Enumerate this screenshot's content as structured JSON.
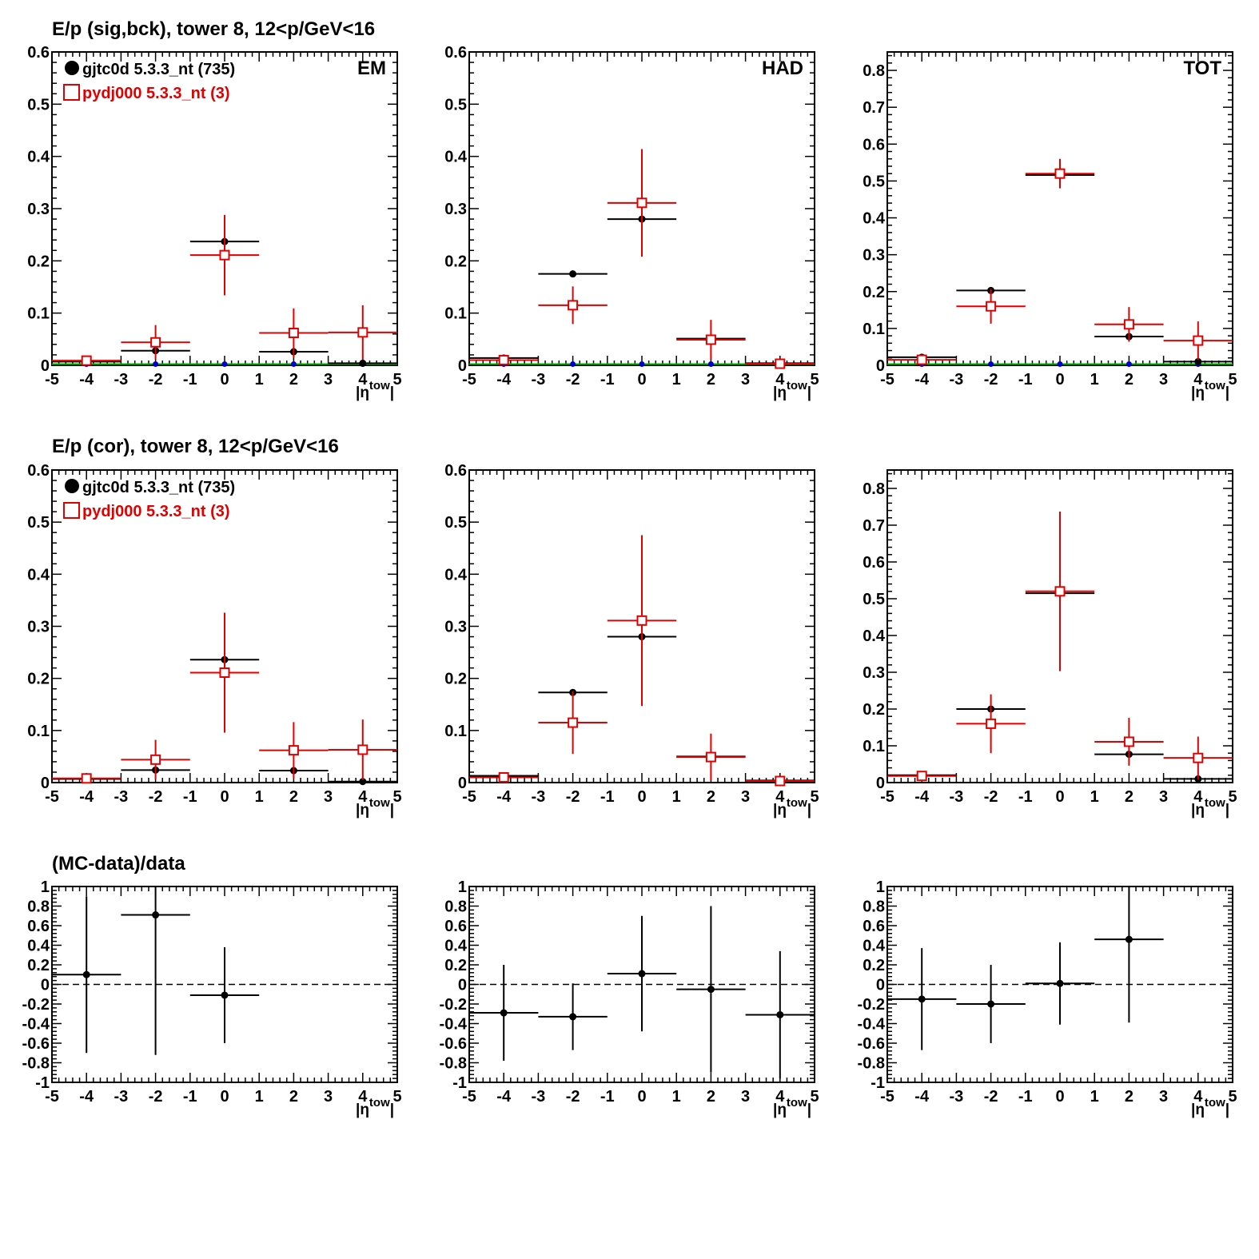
{
  "titles": {
    "row1": "E/p (sig,bck), tower 8, 12<p/GeV<16",
    "row2": "E/p (cor), tower 8, 12<p/GeV<16",
    "row3": "(MC-data)/data"
  },
  "legend": {
    "data": "gjtc0d 5.3.3_nt (735)",
    "mc": "pydj000 5.3.3_nt (3)"
  },
  "panel_labels": [
    "EM",
    "HAD",
    "TOT"
  ],
  "x_axis_label": "|η^tow|",
  "colors": {
    "data": "#000000",
    "mc": "#e00000",
    "blue": "#0000cc",
    "green": "#00b000"
  },
  "chart_data": [
    {
      "id": "r1c1",
      "type": "scatter",
      "xlim": [
        -5,
        5
      ],
      "ylim": [
        0,
        0.6
      ],
      "yticks": [
        0,
        0.1,
        0.2,
        0.3,
        0.4,
        0.5,
        0.6
      ],
      "ytick_labels": [
        "0",
        "0.1",
        "0.2",
        "0.3",
        "0.4",
        "0.5",
        "0.6"
      ],
      "label": "EM",
      "legend": true,
      "floor_markers": true,
      "series": [
        {
          "name": "gjtc0d 5.3.3_nt (735)",
          "color": "#000000",
          "marker": "dot",
          "points": [
            {
              "x": -4,
              "y": 0.007,
              "err": 0.004
            },
            {
              "x": -2,
              "y": 0.028,
              "err": 0.005
            },
            {
              "x": 0,
              "y": 0.237,
              "err": 0.007
            },
            {
              "x": 2,
              "y": 0.026,
              "err": 0.005
            },
            {
              "x": 4,
              "y": 0.004,
              "err": 0.003
            }
          ]
        },
        {
          "name": "pydj000 5.3.3_nt (3)",
          "color": "#e00000",
          "marker": "square",
          "points": [
            {
              "x": -4,
              "y": 0.009,
              "err": 0.006
            },
            {
              "x": -2,
              "y": 0.044,
              "err": 0.033
            },
            {
              "x": 0,
              "y": 0.211,
              "err": 0.077
            },
            {
              "x": 2,
              "y": 0.062,
              "err": 0.047
            },
            {
              "x": 4,
              "y": 0.063,
              "err": 0.052
            }
          ]
        }
      ]
    },
    {
      "id": "r1c2",
      "type": "scatter",
      "xlim": [
        -5,
        5
      ],
      "ylim": [
        0,
        0.6
      ],
      "yticks": [
        0,
        0.1,
        0.2,
        0.3,
        0.4,
        0.5,
        0.6
      ],
      "ytick_labels": [
        "0",
        "0.1",
        "0.2",
        "0.3",
        "0.4",
        "0.5",
        "0.6"
      ],
      "label": "HAD",
      "legend": false,
      "floor_markers": true,
      "series": [
        {
          "name": "gjtc0d 5.3.3_nt (735)",
          "color": "#000000",
          "marker": "dot",
          "points": [
            {
              "x": -4,
              "y": 0.014,
              "err": 0.003
            },
            {
              "x": -2,
              "y": 0.175,
              "err": 0.005
            },
            {
              "x": 0,
              "y": 0.28,
              "err": 0.007
            },
            {
              "x": 2,
              "y": 0.051,
              "err": 0.005
            },
            {
              "x": 4,
              "y": 0.004,
              "err": 0.002
            }
          ]
        },
        {
          "name": "pydj000 5.3.3_nt (3)",
          "color": "#e00000",
          "marker": "square",
          "points": [
            {
              "x": -4,
              "y": 0.01,
              "err": 0.005
            },
            {
              "x": -2,
              "y": 0.115,
              "err": 0.036
            },
            {
              "x": 0,
              "y": 0.311,
              "err": 0.103
            },
            {
              "x": 2,
              "y": 0.049,
              "err": 0.038
            },
            {
              "x": 4,
              "y": 0.003,
              "err": 0.004
            }
          ]
        }
      ]
    },
    {
      "id": "r1c3",
      "type": "scatter",
      "xlim": [
        -5,
        5
      ],
      "ylim": [
        0,
        0.85
      ],
      "yticks": [
        0,
        0.1,
        0.2,
        0.3,
        0.4,
        0.5,
        0.6,
        0.7,
        0.8
      ],
      "ytick_labels": [
        "0",
        "0.1",
        "0.2",
        "0.3",
        "0.4",
        "0.5",
        "0.6",
        "0.7",
        "0.8"
      ],
      "label": "TOT",
      "legend": false,
      "floor_markers": true,
      "series": [
        {
          "name": "gjtc0d 5.3.3_nt (735)",
          "color": "#000000",
          "marker": "dot",
          "points": [
            {
              "x": -4,
              "y": 0.022,
              "err": 0.004
            },
            {
              "x": -2,
              "y": 0.203,
              "err": 0.006
            },
            {
              "x": 0,
              "y": 0.516,
              "err": 0.008
            },
            {
              "x": 2,
              "y": 0.078,
              "err": 0.005
            },
            {
              "x": 4,
              "y": 0.01,
              "err": 0.003
            }
          ]
        },
        {
          "name": "pydj000 5.3.3_nt (3)",
          "color": "#e00000",
          "marker": "square",
          "points": [
            {
              "x": -4,
              "y": 0.015,
              "err": 0.008
            },
            {
              "x": -2,
              "y": 0.16,
              "err": 0.047
            },
            {
              "x": 0,
              "y": 0.52,
              "err": 0.04
            },
            {
              "x": 2,
              "y": 0.111,
              "err": 0.047
            },
            {
              "x": 4,
              "y": 0.067,
              "err": 0.052
            }
          ]
        }
      ]
    },
    {
      "id": "r2c1",
      "type": "scatter",
      "xlim": [
        -5,
        5
      ],
      "ylim": [
        0,
        0.6
      ],
      "yticks": [
        0,
        0.1,
        0.2,
        0.3,
        0.4,
        0.5,
        0.6
      ],
      "ytick_labels": [
        "0",
        "0.1",
        "0.2",
        "0.3",
        "0.4",
        "0.5",
        "0.6"
      ],
      "label": "",
      "legend": true,
      "floor_markers": false,
      "series": [
        {
          "name": "gjtc0d 5.3.3_nt (735)",
          "color": "#000000",
          "marker": "dot",
          "points": [
            {
              "x": -4,
              "y": 0.007,
              "err": 0.004
            },
            {
              "x": -2,
              "y": 0.024,
              "err": 0.005
            },
            {
              "x": 0,
              "y": 0.236,
              "err": 0.007
            },
            {
              "x": 2,
              "y": 0.023,
              "err": 0.005
            },
            {
              "x": 4,
              "y": 0.002,
              "err": 0.003
            }
          ]
        },
        {
          "name": "pydj000 5.3.3_nt (3)",
          "color": "#e00000",
          "marker": "square",
          "points": [
            {
              "x": -4,
              "y": 0.008,
              "err": 0.006
            },
            {
              "x": -2,
              "y": 0.044,
              "err": 0.038
            },
            {
              "x": 0,
              "y": 0.211,
              "err": 0.115
            },
            {
              "x": 2,
              "y": 0.062,
              "err": 0.054
            },
            {
              "x": 4,
              "y": 0.063,
              "err": 0.058
            }
          ]
        }
      ]
    },
    {
      "id": "r2c2",
      "type": "scatter",
      "xlim": [
        -5,
        5
      ],
      "ylim": [
        0,
        0.6
      ],
      "yticks": [
        0,
        0.1,
        0.2,
        0.3,
        0.4,
        0.5,
        0.6
      ],
      "ytick_labels": [
        "0",
        "0.1",
        "0.2",
        "0.3",
        "0.4",
        "0.5",
        "0.6"
      ],
      "label": "",
      "legend": false,
      "floor_markers": false,
      "series": [
        {
          "name": "gjtc0d 5.3.3_nt (735)",
          "color": "#000000",
          "marker": "dot",
          "points": [
            {
              "x": -4,
              "y": 0.013,
              "err": 0.003
            },
            {
              "x": -2,
              "y": 0.173,
              "err": 0.005
            },
            {
              "x": 0,
              "y": 0.28,
              "err": 0.007
            },
            {
              "x": 2,
              "y": 0.05,
              "err": 0.005
            },
            {
              "x": 4,
              "y": 0.004,
              "err": 0.002
            }
          ]
        },
        {
          "name": "pydj000 5.3.3_nt (3)",
          "color": "#e00000",
          "marker": "square",
          "points": [
            {
              "x": -4,
              "y": 0.01,
              "err": 0.006
            },
            {
              "x": -2,
              "y": 0.115,
              "err": 0.06
            },
            {
              "x": 0,
              "y": 0.311,
              "err": 0.164
            },
            {
              "x": 2,
              "y": 0.049,
              "err": 0.045
            },
            {
              "x": 4,
              "y": 0.003,
              "err": 0.005
            }
          ]
        }
      ]
    },
    {
      "id": "r2c3",
      "type": "scatter",
      "xlim": [
        -5,
        5
      ],
      "ylim": [
        0,
        0.85
      ],
      "yticks": [
        0,
        0.1,
        0.2,
        0.3,
        0.4,
        0.5,
        0.6,
        0.7,
        0.8
      ],
      "ytick_labels": [
        "0",
        "0.1",
        "0.2",
        "0.3",
        "0.4",
        "0.5",
        "0.6",
        "0.7",
        "0.8"
      ],
      "label": "",
      "legend": false,
      "floor_markers": false,
      "series": [
        {
          "name": "gjtc0d 5.3.3_nt (735)",
          "color": "#000000",
          "marker": "dot",
          "points": [
            {
              "x": -4,
              "y": 0.02,
              "err": 0.004
            },
            {
              "x": -2,
              "y": 0.2,
              "err": 0.006
            },
            {
              "x": 0,
              "y": 0.515,
              "err": 0.008
            },
            {
              "x": 2,
              "y": 0.077,
              "err": 0.005
            },
            {
              "x": 4,
              "y": 0.01,
              "err": 0.003
            }
          ]
        },
        {
          "name": "pydj000 5.3.3_nt (3)",
          "color": "#e00000",
          "marker": "square",
          "points": [
            {
              "x": -4,
              "y": 0.018,
              "err": 0.006
            },
            {
              "x": -2,
              "y": 0.16,
              "err": 0.08
            },
            {
              "x": 0,
              "y": 0.52,
              "err": 0.217
            },
            {
              "x": 2,
              "y": 0.111,
              "err": 0.065
            },
            {
              "x": 4,
              "y": 0.067,
              "err": 0.058
            }
          ]
        }
      ]
    },
    {
      "id": "r3c1",
      "type": "scatter",
      "xlim": [
        -5,
        5
      ],
      "ylim": [
        -1,
        1
      ],
      "zero_line": true,
      "yticks": [
        -1,
        -0.8,
        -0.6,
        -0.4,
        -0.2,
        0,
        0.2,
        0.4,
        0.6,
        0.8,
        1
      ],
      "ytick_labels": [
        "-1",
        "-0.8",
        "-0.6",
        "-0.4",
        "-0.2",
        "0",
        "0.2",
        "0.4",
        "0.6",
        "0.8",
        "1"
      ],
      "label": "",
      "legend": false,
      "floor_markers": false,
      "series": [
        {
          "name": "",
          "color": "#000000",
          "marker": "dot",
          "points": [
            {
              "x": -4,
              "y": 0.1,
              "err": 0.8
            },
            {
              "x": -2,
              "y": 0.71,
              "err": 1.43
            },
            {
              "x": 0,
              "y": -0.11,
              "err": 0.49
            }
          ]
        }
      ]
    },
    {
      "id": "r3c2",
      "type": "scatter",
      "xlim": [
        -5,
        5
      ],
      "ylim": [
        -1,
        1
      ],
      "zero_line": true,
      "yticks": [
        -1,
        -0.8,
        -0.6,
        -0.4,
        -0.2,
        0,
        0.2,
        0.4,
        0.6,
        0.8,
        1
      ],
      "ytick_labels": [
        "-1",
        "-0.8",
        "-0.6",
        "-0.4",
        "-0.2",
        "0",
        "0.2",
        "0.4",
        "0.6",
        "0.8",
        "1"
      ],
      "label": "",
      "legend": false,
      "floor_markers": false,
      "series": [
        {
          "name": "",
          "color": "#000000",
          "marker": "dot",
          "points": [
            {
              "x": -4,
              "y": -0.29,
              "err": 0.49
            },
            {
              "x": -2,
              "y": -0.33,
              "err": 0.34
            },
            {
              "x": 0,
              "y": 0.11,
              "err": 0.59
            },
            {
              "x": 2,
              "y": -0.05,
              "err": 0.85
            },
            {
              "x": 4,
              "y": -0.31,
              "err": 0.65
            }
          ]
        }
      ]
    },
    {
      "id": "r3c3",
      "type": "scatter",
      "xlim": [
        -5,
        5
      ],
      "ylim": [
        -1,
        1
      ],
      "zero_line": true,
      "yticks": [
        -1,
        -0.8,
        -0.6,
        -0.4,
        -0.2,
        0,
        0.2,
        0.4,
        0.6,
        0.8,
        1
      ],
      "ytick_labels": [
        "-1",
        "-0.8",
        "-0.6",
        "-0.4",
        "-0.2",
        "0",
        "0.2",
        "0.4",
        "0.6",
        "0.8",
        "1"
      ],
      "label": "",
      "legend": false,
      "floor_markers": false,
      "series": [
        {
          "name": "",
          "color": "#000000",
          "marker": "dot",
          "points": [
            {
              "x": -4,
              "y": -0.15,
              "err": 0.52
            },
            {
              "x": -2,
              "y": -0.2,
              "err": 0.4
            },
            {
              "x": 0,
              "y": 0.01,
              "err": 0.42
            },
            {
              "x": 2,
              "y": 0.46,
              "err": 0.85
            }
          ]
        }
      ]
    }
  ]
}
